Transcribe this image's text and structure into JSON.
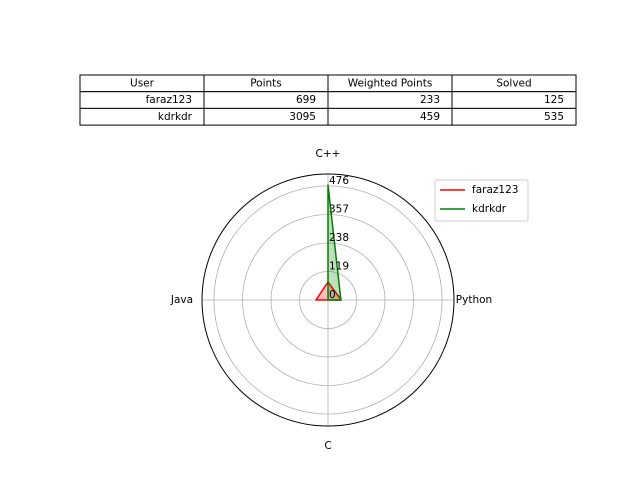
{
  "table": {
    "columns": [
      "User",
      "Points",
      "Weighted Points",
      "Solved"
    ],
    "rows": [
      [
        "faraz123",
        699,
        233,
        125
      ],
      [
        "kdrkdr",
        3095,
        459,
        535
      ]
    ]
  },
  "chart_data": {
    "type": "radar",
    "categories": [
      "C++",
      "Python",
      "C",
      "Java"
    ],
    "rlim": [
      0,
      526
    ],
    "rticks": [
      0,
      119,
      238,
      357,
      476
    ],
    "grid": true,
    "legend": "upper right",
    "series": [
      {
        "name": "faraz123",
        "color": "#ff0000",
        "values": [
          75,
          55,
          0,
          50
        ]
      },
      {
        "name": "kdrkdr",
        "color": "#008000",
        "values": [
          480,
          54,
          0,
          0
        ]
      }
    ]
  }
}
